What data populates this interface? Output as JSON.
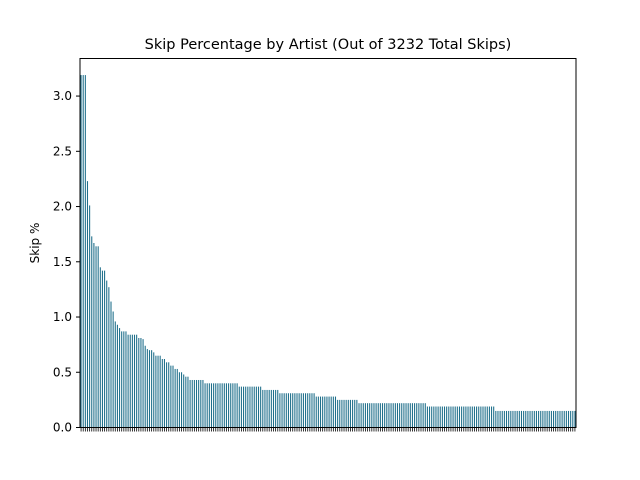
{
  "chart_data": {
    "type": "bar",
    "title": "Skip Percentage by Artist (Out of 3232 Total Skips)",
    "xlabel": "",
    "ylabel": "Skip %",
    "ylim": [
      0,
      3.34
    ],
    "yticks": [
      "0.0",
      "0.5",
      "1.0",
      "1.5",
      "2.0",
      "2.5",
      "3.0"
    ],
    "bar_color": "#1f6f8b",
    "grid": false,
    "legend": "none",
    "values": [
      3.19,
      3.19,
      3.19,
      2.23,
      2.01,
      1.73,
      1.67,
      1.64,
      1.64,
      1.45,
      1.42,
      1.42,
      1.33,
      1.27,
      1.14,
      1.05,
      0.96,
      0.93,
      0.9,
      0.87,
      0.87,
      0.87,
      0.84,
      0.84,
      0.84,
      0.84,
      0.84,
      0.81,
      0.81,
      0.8,
      0.74,
      0.71,
      0.7,
      0.7,
      0.68,
      0.65,
      0.65,
      0.65,
      0.62,
      0.62,
      0.59,
      0.59,
      0.56,
      0.56,
      0.53,
      0.53,
      0.5,
      0.5,
      0.48,
      0.46,
      0.46,
      0.43,
      0.43,
      0.43,
      0.43,
      0.43,
      0.43,
      0.43,
      0.4,
      0.4,
      0.4,
      0.4,
      0.4,
      0.4,
      0.4,
      0.4,
      0.4,
      0.4,
      0.4,
      0.4,
      0.4,
      0.4,
      0.4,
      0.4,
      0.37,
      0.37,
      0.37,
      0.37,
      0.37,
      0.37,
      0.37,
      0.37,
      0.37,
      0.37,
      0.37,
      0.34,
      0.34,
      0.34,
      0.34,
      0.34,
      0.34,
      0.34,
      0.34,
      0.31,
      0.31,
      0.31,
      0.31,
      0.31,
      0.31,
      0.31,
      0.31,
      0.31,
      0.31,
      0.31,
      0.31,
      0.31,
      0.31,
      0.31,
      0.31,
      0.31,
      0.28,
      0.28,
      0.28,
      0.28,
      0.28,
      0.28,
      0.28,
      0.28,
      0.28,
      0.28,
      0.25,
      0.25,
      0.25,
      0.25,
      0.25,
      0.25,
      0.25,
      0.25,
      0.25,
      0.25,
      0.22,
      0.22,
      0.22,
      0.22,
      0.22,
      0.22,
      0.22,
      0.22,
      0.22,
      0.22,
      0.22,
      0.22,
      0.22,
      0.22,
      0.22,
      0.22,
      0.22,
      0.22,
      0.22,
      0.22,
      0.22,
      0.22,
      0.22,
      0.22,
      0.22,
      0.22,
      0.22,
      0.22,
      0.22,
      0.22,
      0.22,
      0.22,
      0.19,
      0.19,
      0.19,
      0.19,
      0.19,
      0.19,
      0.19,
      0.19,
      0.19,
      0.19,
      0.19,
      0.19,
      0.19,
      0.19,
      0.19,
      0.19,
      0.19,
      0.19,
      0.19,
      0.19,
      0.19,
      0.19,
      0.19,
      0.19,
      0.19,
      0.19,
      0.19,
      0.19,
      0.19,
      0.19,
      0.19,
      0.19,
      0.15,
      0.15,
      0.15,
      0.15,
      0.15,
      0.15,
      0.15,
      0.15,
      0.15,
      0.15,
      0.15,
      0.15,
      0.15,
      0.15,
      0.15,
      0.15,
      0.15,
      0.15,
      0.15,
      0.15,
      0.15,
      0.15,
      0.15,
      0.15,
      0.15,
      0.15,
      0.15,
      0.15,
      0.15,
      0.15,
      0.15,
      0.15,
      0.15,
      0.15,
      0.15,
      0.15,
      0.15,
      0.15
    ]
  }
}
